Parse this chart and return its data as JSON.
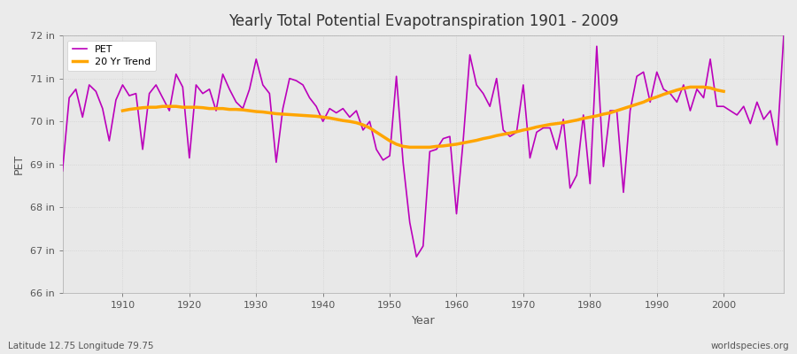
{
  "title": "Yearly Total Potential Evapotranspiration 1901 - 2009",
  "xlabel": "Year",
  "ylabel": "PET",
  "bottom_left_label": "Latitude 12.75 Longitude 79.75",
  "bottom_right_label": "worldspecies.org",
  "ylim": [
    66,
    72
  ],
  "yticks": [
    66,
    67,
    68,
    69,
    70,
    71,
    72
  ],
  "ytick_labels": [
    "66 in",
    "67 in",
    "68 in",
    "69 in",
    "70 in",
    "71 in",
    "72 in"
  ],
  "years": [
    1901,
    1902,
    1903,
    1904,
    1905,
    1906,
    1907,
    1908,
    1909,
    1910,
    1911,
    1912,
    1913,
    1914,
    1915,
    1916,
    1917,
    1918,
    1919,
    1920,
    1921,
    1922,
    1923,
    1924,
    1925,
    1926,
    1927,
    1928,
    1929,
    1930,
    1931,
    1932,
    1933,
    1934,
    1935,
    1936,
    1937,
    1938,
    1939,
    1940,
    1941,
    1942,
    1943,
    1944,
    1945,
    1946,
    1947,
    1948,
    1949,
    1950,
    1951,
    1952,
    1953,
    1954,
    1955,
    1956,
    1957,
    1958,
    1959,
    1960,
    1961,
    1962,
    1963,
    1964,
    1965,
    1966,
    1967,
    1968,
    1969,
    1970,
    1971,
    1972,
    1973,
    1974,
    1975,
    1976,
    1977,
    1978,
    1979,
    1980,
    1981,
    1982,
    1983,
    1984,
    1985,
    1986,
    1987,
    1988,
    1989,
    1990,
    1991,
    1992,
    1993,
    1994,
    1995,
    1996,
    1997,
    1998,
    1999,
    2000,
    2001,
    2002,
    2003,
    2004,
    2005,
    2006,
    2007,
    2008,
    2009
  ],
  "pet_values": [
    68.85,
    70.55,
    70.75,
    70.1,
    70.85,
    70.7,
    70.3,
    69.55,
    70.5,
    70.85,
    70.6,
    70.65,
    69.35,
    70.65,
    70.85,
    70.55,
    70.25,
    71.1,
    70.8,
    69.15,
    70.85,
    70.65,
    70.75,
    70.25,
    71.1,
    70.75,
    70.45,
    70.3,
    70.75,
    71.45,
    70.85,
    70.65,
    69.05,
    70.3,
    71.0,
    70.95,
    70.85,
    70.55,
    70.35,
    70.0,
    70.3,
    70.2,
    70.3,
    70.1,
    70.25,
    69.8,
    70.0,
    69.35,
    69.1,
    69.2,
    71.05,
    69.05,
    67.65,
    66.85,
    67.1,
    69.3,
    69.35,
    69.6,
    69.65,
    67.85,
    69.55,
    71.55,
    70.85,
    70.65,
    70.35,
    71.0,
    69.8,
    69.65,
    69.75,
    70.85,
    69.15,
    69.75,
    69.85,
    69.85,
    69.35,
    70.05,
    68.45,
    68.75,
    70.15,
    68.55,
    71.75,
    68.95,
    70.25,
    70.25,
    68.35,
    70.25,
    71.05,
    71.15,
    70.45,
    71.15,
    70.75,
    70.65,
    70.45,
    70.85,
    70.25,
    70.75,
    70.55,
    71.45,
    70.35,
    70.35,
    70.25,
    70.15,
    70.35,
    69.95,
    70.45,
    70.05,
    70.25,
    69.45,
    72.0
  ],
  "trend_years": [
    1910,
    1911,
    1912,
    1913,
    1914,
    1915,
    1916,
    1917,
    1918,
    1919,
    1920,
    1921,
    1922,
    1923,
    1924,
    1925,
    1926,
    1927,
    1928,
    1929,
    1930,
    1931,
    1932,
    1933,
    1934,
    1935,
    1936,
    1937,
    1938,
    1939,
    1940,
    1941,
    1942,
    1943,
    1944,
    1945,
    1946,
    1947,
    1948,
    1949,
    1950,
    1951,
    1952,
    1953,
    1954,
    1955,
    1956,
    1957,
    1958,
    1959,
    1960,
    1961,
    1962,
    1963,
    1964,
    1965,
    1966,
    1967,
    1968,
    1969,
    1970,
    1971,
    1972,
    1973,
    1974,
    1975,
    1976,
    1977,
    1978,
    1979,
    1980,
    1981,
    1982,
    1983,
    1984,
    1985,
    1986,
    1987,
    1988,
    1989,
    1990,
    1991,
    1992,
    1993,
    1994,
    1995,
    1996,
    1997,
    1998,
    1999,
    2000
  ],
  "trend_values": [
    70.25,
    70.28,
    70.3,
    70.32,
    70.33,
    70.33,
    70.35,
    70.35,
    70.35,
    70.33,
    70.33,
    70.33,
    70.32,
    70.3,
    70.3,
    70.3,
    70.28,
    70.28,
    70.27,
    70.25,
    70.23,
    70.22,
    70.2,
    70.18,
    70.17,
    70.16,
    70.15,
    70.14,
    70.13,
    70.12,
    70.1,
    70.08,
    70.05,
    70.02,
    70.0,
    69.97,
    69.92,
    69.85,
    69.75,
    69.65,
    69.55,
    69.47,
    69.42,
    69.4,
    69.4,
    69.4,
    69.4,
    69.42,
    69.43,
    69.45,
    69.47,
    69.5,
    69.53,
    69.56,
    69.6,
    69.63,
    69.67,
    69.7,
    69.73,
    69.76,
    69.8,
    69.83,
    69.87,
    69.9,
    69.93,
    69.95,
    69.97,
    70.0,
    70.03,
    70.07,
    70.1,
    70.13,
    70.17,
    70.2,
    70.25,
    70.3,
    70.35,
    70.4,
    70.45,
    70.52,
    70.57,
    70.63,
    70.68,
    70.73,
    70.77,
    70.8,
    70.8,
    70.8,
    70.78,
    70.73,
    70.7
  ],
  "pet_color": "#BB00BB",
  "trend_color": "#FFA500",
  "bg_color": "#EBEBEB",
  "plot_bg_color": "#E8E8E8",
  "grid_color": "#CCCCCC",
  "text_color": "#555555"
}
